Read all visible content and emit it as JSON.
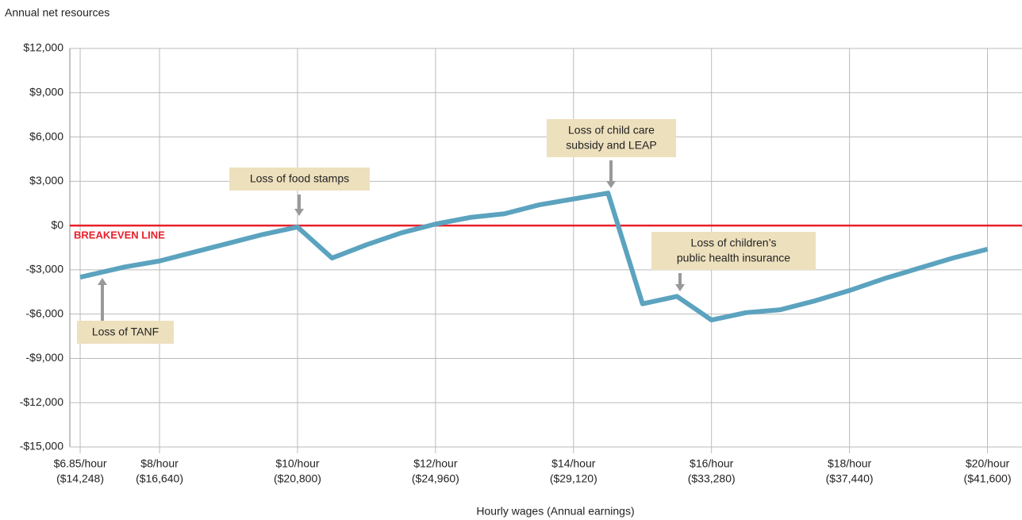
{
  "chart_data": {
    "type": "line",
    "y_label": "Annual net resources",
    "x_label": "Hourly wages (Annual earnings)",
    "x": [
      6.85,
      7.5,
      8,
      8.5,
      9,
      9.5,
      10,
      10.5,
      11,
      11.5,
      12,
      12.5,
      13,
      13.5,
      14,
      14.5,
      15,
      15.5,
      16,
      16.5,
      17,
      17.5,
      18,
      18.5,
      19,
      19.5,
      20
    ],
    "series": [
      {
        "name": "Annual net resources",
        "color": "#5ba3bf",
        "values": [
          -3500,
          -2800,
          -2400,
          -1800,
          -1200,
          -600,
          -100,
          -2200,
          -1300,
          -500,
          100,
          550,
          800,
          1400,
          1800,
          2200,
          -5300,
          -4800,
          -6400,
          -5900,
          -5700,
          -5100,
          -4400,
          -3600,
          -2900,
          -2200,
          -1600
        ]
      }
    ],
    "xlim": [
      6.7,
      20.5
    ],
    "xticks": [
      {
        "value": 6.85,
        "label": "$6.85/hour",
        "earnings": "($14,248)"
      },
      {
        "value": 8,
        "label": "$8/hour",
        "earnings": "($16,640)"
      },
      {
        "value": 10,
        "label": "$10/hour",
        "earnings": "($20,800)"
      },
      {
        "value": 12,
        "label": "$12/hour",
        "earnings": "($24,960)"
      },
      {
        "value": 14,
        "label": "$14/hour",
        "earnings": "($29,120)"
      },
      {
        "value": 16,
        "label": "$16/hour",
        "earnings": "($33,280)"
      },
      {
        "value": 18,
        "label": "$18/hour",
        "earnings": "($37,440)"
      },
      {
        "value": 20,
        "label": "$20/hour",
        "earnings": "($41,600)"
      }
    ],
    "ylim": [
      -15000,
      12000
    ],
    "yticks": [
      {
        "value": 12000,
        "label": "$12,000"
      },
      {
        "value": 9000,
        "label": "$9,000"
      },
      {
        "value": 6000,
        "label": "$6,000"
      },
      {
        "value": 3000,
        "label": "$3,000"
      },
      {
        "value": 0,
        "label": "$0"
      },
      {
        "value": -3000,
        "label": "-$3,000"
      },
      {
        "value": -6000,
        "label": "-$6,000"
      },
      {
        "value": -9000,
        "label": "-$9,000"
      },
      {
        "value": -12000,
        "label": "-$12,000"
      },
      {
        "value": -15000,
        "label": "-$15,000"
      }
    ],
    "grid": true,
    "reference_line": {
      "value": 0,
      "label": "BREAKEVEN LINE",
      "color": "#e8202a"
    },
    "annotations": [
      {
        "lines": [
          "Loss of TANF"
        ]
      },
      {
        "lines": [
          "Loss of food stamps"
        ]
      },
      {
        "lines": [
          "Loss of child care",
          "subsidy and LEAP"
        ]
      },
      {
        "lines": [
          "Loss of children’s",
          "public health insurance"
        ]
      }
    ]
  }
}
